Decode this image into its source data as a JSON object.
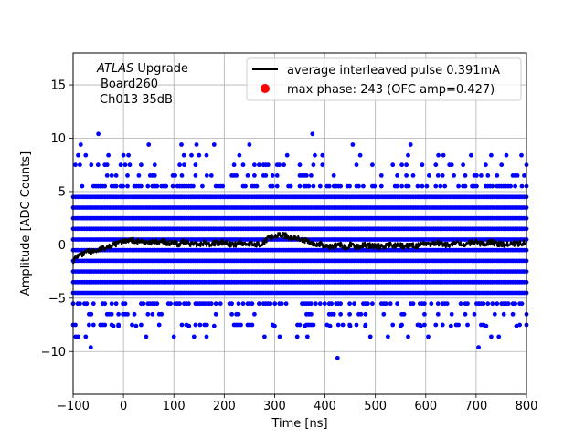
{
  "chart_data": {
    "type": "scatter",
    "xlabel": "Time [ns]",
    "ylabel": "Amplitude [ADC Counts]",
    "xlim": [
      -100,
      800
    ],
    "ylim": [
      -14,
      18
    ],
    "xticks": [
      -100,
      0,
      100,
      200,
      300,
      400,
      500,
      600,
      700,
      800
    ],
    "yticks": [
      -10,
      -5,
      0,
      5,
      10,
      15
    ],
    "grid": true,
    "legend_position": "top-right",
    "annotation": {
      "line1_italic": "ATLAS",
      "line1_rest": " Upgrade",
      "line2": "Board260",
      "line3": "Ch013 35dB"
    },
    "series": [
      {
        "name": "average interleaved pulse 0.391mA",
        "kind": "line",
        "color": "#000000",
        "points": [
          [
            -100,
            -1.5
          ],
          [
            -90,
            -1.0
          ],
          [
            -80,
            -0.9
          ],
          [
            -70,
            -0.6
          ],
          [
            -60,
            -0.6
          ],
          [
            -50,
            -0.5
          ],
          [
            -40,
            -0.3
          ],
          [
            -30,
            -0.1
          ],
          [
            -20,
            0.0
          ],
          [
            -10,
            0.2
          ],
          [
            0,
            0.3
          ],
          [
            10,
            0.5
          ],
          [
            20,
            0.4
          ],
          [
            30,
            0.3
          ],
          [
            40,
            0.3
          ],
          [
            50,
            0.1
          ],
          [
            60,
            0.3
          ],
          [
            70,
            0.2
          ],
          [
            80,
            0.3
          ],
          [
            90,
            0.1
          ],
          [
            100,
            0.2
          ],
          [
            110,
            0.0
          ],
          [
            120,
            0.3
          ],
          [
            130,
            0.2
          ],
          [
            140,
            0.0
          ],
          [
            150,
            0.1
          ],
          [
            160,
            0.2
          ],
          [
            170,
            0.0
          ],
          [
            180,
            0.2
          ],
          [
            190,
            0.1
          ],
          [
            200,
            0.3
          ],
          [
            210,
            0.1
          ],
          [
            220,
            0.0
          ],
          [
            230,
            0.2
          ],
          [
            240,
            0.1
          ],
          [
            250,
            0.1
          ],
          [
            260,
            0.0
          ],
          [
            270,
            0.1
          ],
          [
            280,
            0.3
          ],
          [
            290,
            0.7
          ],
          [
            300,
            0.8
          ],
          [
            310,
            0.9
          ],
          [
            320,
            0.9
          ],
          [
            330,
            0.7
          ],
          [
            340,
            0.6
          ],
          [
            350,
            0.6
          ],
          [
            360,
            0.4
          ],
          [
            370,
            0.2
          ],
          [
            380,
            0.0
          ],
          [
            390,
            0.1
          ],
          [
            400,
            -0.1
          ],
          [
            410,
            -0.2
          ],
          [
            420,
            -0.1
          ],
          [
            430,
            0.0
          ],
          [
            440,
            -0.2
          ],
          [
            450,
            0.0
          ],
          [
            460,
            -0.2
          ],
          [
            470,
            -0.1
          ],
          [
            480,
            0.0
          ],
          [
            490,
            -0.1
          ],
          [
            500,
            -0.1
          ],
          [
            510,
            -0.2
          ],
          [
            520,
            -0.1
          ],
          [
            530,
            0.0
          ],
          [
            540,
            -0.1
          ],
          [
            550,
            -0.1
          ],
          [
            560,
            -0.2
          ],
          [
            570,
            0.0
          ],
          [
            580,
            -0.1
          ],
          [
            590,
            0.0
          ],
          [
            600,
            0.2
          ],
          [
            610,
            0.0
          ],
          [
            620,
            0.2
          ],
          [
            630,
            0.1
          ],
          [
            640,
            0.0
          ],
          [
            650,
            0.0
          ],
          [
            660,
            0.2
          ],
          [
            670,
            0.0
          ],
          [
            680,
            0.1
          ],
          [
            690,
            0.2
          ],
          [
            700,
            0.3
          ],
          [
            710,
            0.1
          ],
          [
            720,
            0.2
          ],
          [
            730,
            0.3
          ],
          [
            740,
            0.1
          ],
          [
            750,
            0.1
          ],
          [
            760,
            0.0
          ],
          [
            770,
            0.2
          ],
          [
            780,
            0.1
          ],
          [
            790,
            0.2
          ],
          [
            800,
            0.3
          ]
        ]
      },
      {
        "name": "max phase: 243 (OFC amp=0.427)",
        "kind": "marker",
        "color": "#ff0000",
        "points": []
      }
    ],
    "samples": {
      "color": "#0000ff",
      "x_range": [
        -100,
        800
      ],
      "dense_levels": [
        -4.5,
        -3.5,
        -2.5,
        -1.5,
        -0.5,
        0.5,
        1.5,
        2.5,
        3.5,
        4.5
      ],
      "medium_levels": [
        -5.5,
        5.5
      ],
      "sparse_levels": [
        -6.5,
        6.5,
        -7.5,
        7.5
      ],
      "outliers": [
        [
          -50,
          10.4
        ],
        [
          375,
          10.4
        ],
        [
          -90,
          8.4
        ],
        [
          -75,
          8.4
        ],
        [
          -30,
          8.4
        ],
        [
          0,
          8.4
        ],
        [
          10,
          8.4
        ],
        [
          120,
          8.4
        ],
        [
          135,
          8.4
        ],
        [
          150,
          8.4
        ],
        [
          165,
          8.4
        ],
        [
          230,
          8.4
        ],
        [
          325,
          8.4
        ],
        [
          380,
          8.4
        ],
        [
          395,
          8.4
        ],
        [
          470,
          8.4
        ],
        [
          565,
          8.4
        ],
        [
          625,
          8.4
        ],
        [
          635,
          8.4
        ],
        [
          690,
          8.4
        ],
        [
          730,
          8.4
        ],
        [
          760,
          8.4
        ],
        [
          790,
          8.4
        ],
        [
          -85,
          9.4
        ],
        [
          50,
          9.4
        ],
        [
          115,
          9.4
        ],
        [
          145,
          9.4
        ],
        [
          180,
          9.4
        ],
        [
          250,
          9.4
        ],
        [
          455,
          9.4
        ],
        [
          570,
          9.4
        ],
        [
          -65,
          -9.6
        ],
        [
          425,
          -10.6
        ],
        [
          705,
          -9.6
        ],
        [
          -95,
          -8.6
        ],
        [
          -75,
          -8.6
        ],
        [
          -90,
          -8.6
        ],
        [
          45,
          -8.6
        ],
        [
          100,
          -8.6
        ],
        [
          140,
          -8.6
        ],
        [
          165,
          -8.6
        ],
        [
          280,
          -8.6
        ],
        [
          310,
          -8.6
        ],
        [
          345,
          -8.6
        ],
        [
          365,
          -8.6
        ],
        [
          490,
          -8.6
        ],
        [
          525,
          -8.6
        ],
        [
          565,
          -8.6
        ],
        [
          605,
          -8.6
        ],
        [
          730,
          -8.6
        ],
        [
          745,
          -8.6
        ],
        [
          -20,
          -7.6
        ],
        [
          -10,
          -7.6
        ],
        [
          25,
          -7.6
        ],
        [
          130,
          -7.6
        ],
        [
          180,
          -7.6
        ],
        [
          300,
          -7.6
        ],
        [
          360,
          -7.6
        ],
        [
          410,
          -7.6
        ],
        [
          450,
          -7.6
        ],
        [
          480,
          -7.6
        ],
        [
          550,
          -7.6
        ],
        [
          590,
          -7.6
        ],
        [
          650,
          -7.6
        ],
        [
          720,
          -7.6
        ],
        [
          780,
          -7.6
        ]
      ]
    }
  }
}
